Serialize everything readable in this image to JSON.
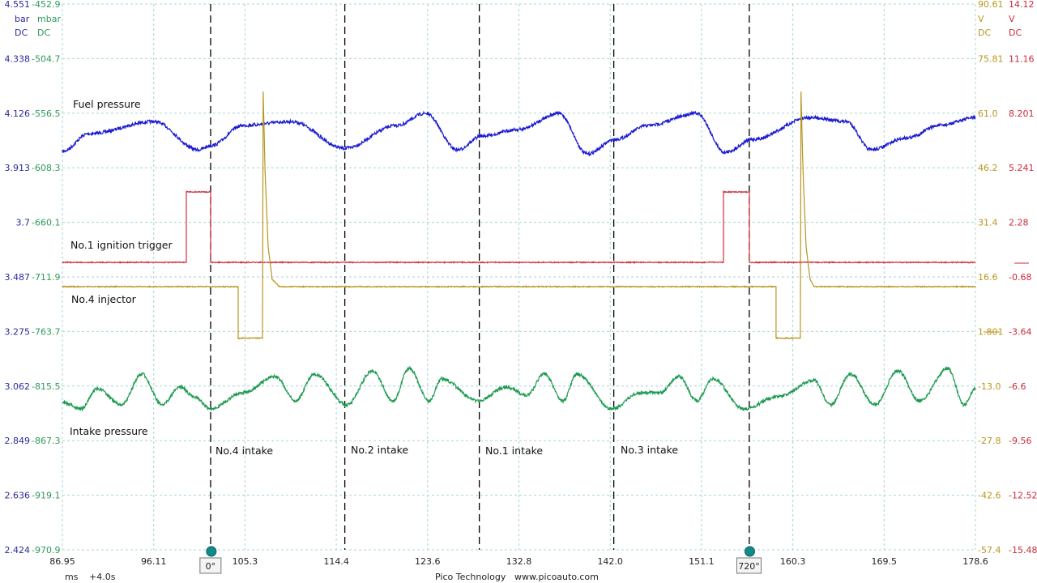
{
  "chart_data": {
    "type": "line",
    "x_axis": {
      "unit": "ms",
      "offset_label": "+4.0s",
      "range": [
        86.95,
        178.6
      ],
      "ticks": [
        "86.95",
        "96.11",
        "105.3",
        "114.4",
        "123.6",
        "132.8",
        "142.0",
        "151.1",
        "160.3",
        "169.5",
        "178.6"
      ]
    },
    "axes": {
      "bar": {
        "unit": "bar",
        "coupling": "DC",
        "color": "#2a2aa0",
        "range": [
          2.424,
          4.551
        ],
        "ticks": [
          "4.551",
          "4.338",
          "4.126",
          "3.913",
          "3.7",
          "3.487",
          "3.275",
          "3.062",
          "2.849",
          "2.636",
          "2.424"
        ]
      },
      "mbar": {
        "unit": "mbar",
        "coupling": "DC",
        "color": "#2e9a5a",
        "range": [
          -970.9,
          -452.9
        ],
        "ticks": [
          "-452.9",
          "-504.7",
          "-556.5",
          "-608.3",
          "-660.1",
          "-711.9",
          "-763.7",
          "-815.5",
          "-867.3",
          "-919.1",
          "-970.9"
        ]
      },
      "v_yellow": {
        "unit": "V",
        "coupling": "DC",
        "color": "#b8961e",
        "range": [
          -57.4,
          90.61
        ],
        "ticks": [
          "90.61",
          "75.81",
          "61.0",
          "46.2",
          "31.4",
          "16.6",
          "1.801",
          "-13.0",
          "-27.8",
          "-42.6",
          "-57.4"
        ]
      },
      "v_red": {
        "unit": "V",
        "coupling": "DC",
        "color": "#cc2a3a",
        "range": [
          -15.48,
          14.12
        ],
        "ticks": [
          "14.12",
          "11.16",
          "8.201",
          "5.241",
          "2.28",
          "-0.68",
          "-3.64",
          "-6.6",
          "-9.56",
          "-12.52",
          "-15.48"
        ]
      }
    },
    "grid": true,
    "series": [
      {
        "name": "Fuel pressure",
        "axis": "bar",
        "color": "#1a1ad0",
        "x": [
          86.95,
          89.63,
          96.14,
          100.61,
          101.83,
          105.08,
          109.96,
          115.25,
          120.54,
          123.38,
          126.63,
          129.07,
          132.73,
          136.8,
          139.65,
          142.49,
          145.74,
          150.62,
          153.47,
          156.31,
          162.01,
          165.67,
          168.11,
          171.77,
          175.02,
          178.6
        ],
        "y": [
          3.977,
          4.046,
          4.093,
          3.983,
          3.999,
          4.078,
          4.093,
          3.989,
          4.078,
          4.125,
          3.983,
          4.037,
          4.062,
          4.125,
          3.967,
          4.024,
          4.078,
          4.125,
          3.973,
          4.024,
          4.109,
          4.093,
          3.983,
          4.03,
          4.078,
          4.109
        ]
      },
      {
        "name": "No.1 ignition trigger",
        "axis": "v_red",
        "color": "#d0303c",
        "x": [
          86.95,
          99.39,
          99.39,
          101.83,
          101.83,
          153.31,
          153.31,
          155.91,
          155.91,
          178.6
        ],
        "y": [
          0.11,
          0.11,
          3.93,
          3.93,
          0.11,
          0.11,
          3.93,
          3.93,
          0.11,
          0.11
        ]
      },
      {
        "name": "No.4 injector",
        "axis": "v_yellow",
        "color": "#b8961e",
        "x": [
          86.95,
          104.6,
          104.6,
          107.04,
          107.1,
          107.3,
          107.6,
          108.0,
          108.74,
          158.59,
          158.59,
          161.03,
          161.09,
          161.3,
          161.6,
          162.0,
          162.4,
          178.6
        ],
        "y": [
          13.97,
          13.97,
          0,
          0,
          66.9,
          45,
          25,
          16,
          13.97,
          13.97,
          0,
          0,
          66.9,
          45,
          25,
          16,
          13.97,
          13.97
        ]
      },
      {
        "name": "Intake pressure",
        "axis": "mbar",
        "color": "#1e9a50",
        "x": [
          86.95,
          88.82,
          90.45,
          92.89,
          94.92,
          96.95,
          98.74,
          100.2,
          101.83,
          105.08,
          108.33,
          110.37,
          112.24,
          115.49,
          118.09,
          120.13,
          121.75,
          123.78,
          125.0,
          128.67,
          131.51,
          133.55,
          135.34,
          137.21,
          138.59,
          142.08,
          144.93,
          146.96,
          148.83,
          150.62,
          152.25,
          155.34,
          158.75,
          162.41,
          164.04,
          166.07,
          168.51,
          170.79,
          172.99,
          175.83,
          177.46,
          178.6
        ],
        "y": [
          -831.0,
          -837.2,
          -817.9,
          -833.3,
          -804.1,
          -833.3,
          -816.4,
          -825.6,
          -837.2,
          -821.8,
          -806.4,
          -829.5,
          -804.1,
          -833.3,
          -801.0,
          -829.5,
          -798.7,
          -829.5,
          -808.7,
          -829.5,
          -816.4,
          -824.1,
          -804.1,
          -829.5,
          -804.1,
          -837.2,
          -821.8,
          -821.8,
          -806.4,
          -829.5,
          -808.7,
          -837.2,
          -825.6,
          -810.2,
          -833.3,
          -804.1,
          -833.3,
          -801.0,
          -829.5,
          -798.7,
          -833.3,
          -817.9
        ]
      }
    ],
    "rulers": [
      101.83,
      115.3,
      128.8,
      142.3,
      155.9
    ],
    "annotations": [
      "No.4 intake",
      "No.2 intake",
      "No.1 intake",
      "No.3 intake"
    ],
    "cursors": [
      {
        "label": "0°",
        "x": 101.9
      },
      {
        "label": "720°",
        "x": 155.95
      }
    ]
  },
  "footer": {
    "brand": "Pico Technology",
    "url": "www.picoauto.com"
  }
}
